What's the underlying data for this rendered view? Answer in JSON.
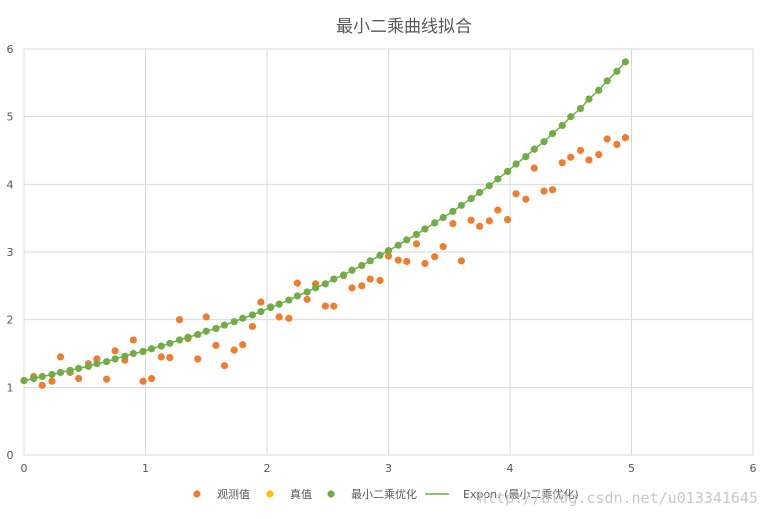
{
  "chart_data": {
    "type": "scatter",
    "title": "最小二乘曲线拟合",
    "xlabel": "",
    "ylabel": "",
    "xlim": [
      0,
      6
    ],
    "ylim": [
      0,
      6
    ],
    "x_ticks": [
      "0",
      "1",
      "2",
      "3",
      "4",
      "5",
      "6"
    ],
    "y_ticks": [
      "0",
      "1",
      "2",
      "3",
      "4",
      "5",
      "6"
    ],
    "grid": true,
    "legend_position": "bottom",
    "series": [
      {
        "name": "观测值",
        "kind": "scatter",
        "color": "#ED7D31",
        "x": [
          0.0,
          0.08,
          0.15,
          0.23,
          0.3,
          0.38,
          0.45,
          0.53,
          0.6,
          0.68,
          0.75,
          0.83,
          0.9,
          0.98,
          1.05,
          1.13,
          1.2,
          1.28,
          1.35,
          1.43,
          1.5,
          1.58,
          1.65,
          1.73,
          1.8,
          1.88,
          1.95,
          2.03,
          2.1,
          2.18,
          2.25,
          2.33,
          2.4,
          2.48,
          2.55,
          2.63,
          2.7,
          2.78,
          2.85,
          2.93,
          3.0,
          3.08,
          3.15,
          3.23,
          3.3,
          3.38,
          3.45,
          3.53,
          3.6,
          3.68,
          3.75,
          3.83,
          3.9,
          3.98,
          4.05,
          4.13,
          4.2,
          4.28,
          4.35,
          4.43,
          4.5,
          4.58,
          4.65,
          4.73,
          4.8,
          4.88,
          4.95
        ],
        "y": [
          1.1,
          1.16,
          1.03,
          1.09,
          1.45,
          1.22,
          1.13,
          1.35,
          1.42,
          1.12,
          1.54,
          1.4,
          1.7,
          1.09,
          1.13,
          1.45,
          1.44,
          2.0,
          1.72,
          1.42,
          2.04,
          1.62,
          1.32,
          1.55,
          1.63,
          1.9,
          2.26,
          2.19,
          2.04,
          2.02,
          2.54,
          2.3,
          2.53,
          2.2,
          2.2,
          2.65,
          2.47,
          2.5,
          2.6,
          2.58,
          2.94,
          2.88,
          2.86,
          3.12,
          2.83,
          2.93,
          3.08,
          3.42,
          2.87,
          3.47,
          3.38,
          3.46,
          3.62,
          3.48,
          3.86,
          3.78,
          4.24,
          3.9,
          3.92,
          4.32,
          4.4,
          4.5,
          4.36,
          4.44,
          4.67,
          4.59,
          4.69
        ]
      },
      {
        "name": "真值",
        "kind": "scatter",
        "color": "#FFC000",
        "x": [],
        "y": []
      },
      {
        "name": "最小二乘优化",
        "kind": "scatter",
        "color": "#70AD47",
        "x": [
          0.0,
          0.08,
          0.15,
          0.23,
          0.3,
          0.38,
          0.45,
          0.53,
          0.6,
          0.68,
          0.75,
          0.83,
          0.9,
          0.98,
          1.05,
          1.13,
          1.2,
          1.28,
          1.35,
          1.43,
          1.5,
          1.58,
          1.65,
          1.73,
          1.8,
          1.88,
          1.95,
          2.03,
          2.1,
          2.18,
          2.25,
          2.33,
          2.4,
          2.48,
          2.55,
          2.63,
          2.7,
          2.78,
          2.85,
          2.93,
          3.0,
          3.08,
          3.15,
          3.23,
          3.3,
          3.38,
          3.45,
          3.53,
          3.6,
          3.68,
          3.75,
          3.83,
          3.9,
          3.98,
          4.05,
          4.13,
          4.2,
          4.28,
          4.35,
          4.43,
          4.5,
          4.58,
          4.65,
          4.73,
          4.8,
          4.88,
          4.95
        ],
        "y": [
          1.1,
          1.13,
          1.16,
          1.19,
          1.22,
          1.25,
          1.28,
          1.31,
          1.35,
          1.38,
          1.42,
          1.46,
          1.5,
          1.53,
          1.57,
          1.61,
          1.65,
          1.7,
          1.74,
          1.78,
          1.83,
          1.87,
          1.92,
          1.97,
          2.02,
          2.07,
          2.12,
          2.18,
          2.23,
          2.29,
          2.35,
          2.41,
          2.47,
          2.53,
          2.6,
          2.66,
          2.73,
          2.8,
          2.87,
          2.95,
          3.02,
          3.1,
          3.18,
          3.26,
          3.34,
          3.43,
          3.51,
          3.6,
          3.69,
          3.79,
          3.88,
          3.98,
          4.08,
          4.19,
          4.3,
          4.41,
          4.52,
          4.63,
          4.75,
          4.87,
          5.0,
          5.12,
          5.26,
          5.39,
          5.53,
          5.67,
          5.81
        ]
      },
      {
        "name": "Expon. (最小二乘优化)",
        "kind": "trendline",
        "color": "#70AD47"
      }
    ]
  },
  "watermark": "http://blog.csdn.net/u013341645"
}
